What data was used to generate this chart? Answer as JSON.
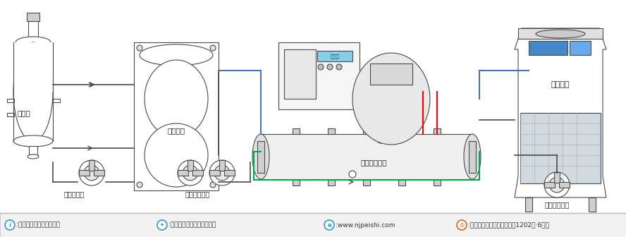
{
  "title": "",
  "bg_color": "#ffffff",
  "line_color": "#4a4a4a",
  "blue_color": "#4472c4",
  "red_color": "#ff0000",
  "green_color": "#00aa44",
  "light_gray": "#e8e8e8",
  "gray": "#999999",
  "dark_gray": "#555555",
  "footer_bg": "#f0f0f0",
  "footer_line_color": "#cccccc",
  "footer_items": [
    {
      "icon_color": "#3399cc",
      "icon_shape": "circle_i",
      "text": ":风冷机组无需冷却塔设备"
    },
    {
      "icon_color": "#3399cc",
      "icon_shape": "circle_star",
      "text": ":南京佩诗机电科技有限公司"
    },
    {
      "icon_color": "#3399cc",
      "icon_shape": "circle_e",
      "text": ":www.njpeishi.com"
    },
    {
      "icon_color": "#cc6622",
      "icon_shape": "circle_loc",
      "text": ":江苏省南京市六合区六斯路1202号·6号楼"
    }
  ],
  "labels": {
    "reactor": "反应釜",
    "cold_water_tank": "冷冻水箱",
    "chiller": "螺杆冷水机组",
    "cooling_tower": "冷却水塔",
    "pump1": "循环工艺泵",
    "pump2": "冷冻循环水泵",
    "pump3": "冷却循环水泵"
  }
}
